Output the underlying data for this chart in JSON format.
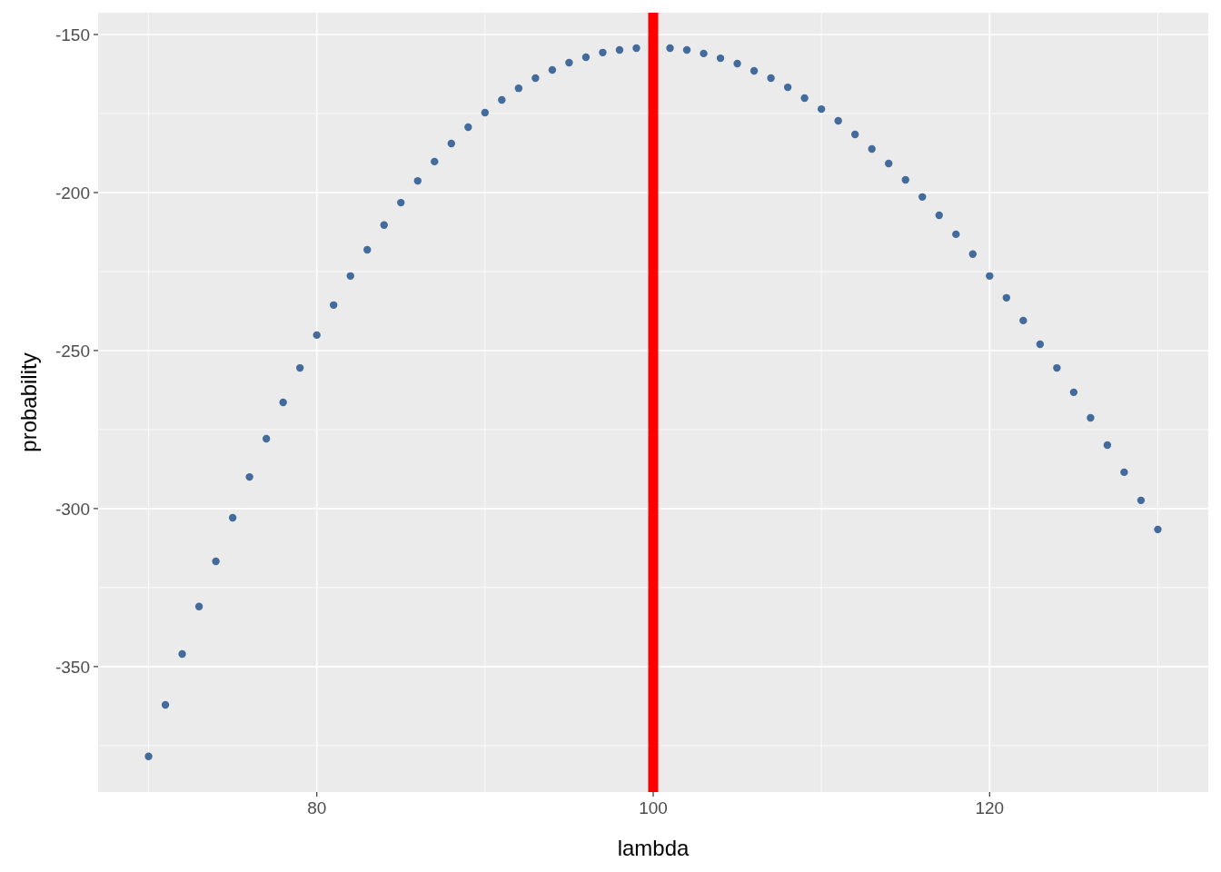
{
  "chart_data": {
    "type": "scatter",
    "xlabel": "lambda",
    "ylabel": "probability",
    "x": [
      70,
      71,
      72,
      73,
      74,
      75,
      76,
      77,
      78,
      79,
      80,
      81,
      82,
      83,
      84,
      85,
      86,
      87,
      88,
      89,
      90,
      91,
      92,
      93,
      94,
      95,
      96,
      97,
      98,
      99,
      100,
      101,
      102,
      103,
      104,
      105,
      106,
      107,
      108,
      109,
      110,
      111,
      112,
      113,
      114,
      115,
      116,
      117,
      118,
      119,
      120,
      121,
      122,
      123,
      124,
      125,
      126,
      127,
      128,
      129,
      130
    ],
    "series": [
      {
        "color": "#436b9c",
        "values": [
          -378.4,
          -362.1,
          -346.0,
          -331.0,
          -316.7,
          -302.9,
          -290.0,
          -277.9,
          -266.4,
          -255.5,
          -245.1,
          -235.6,
          -226.4,
          -218.1,
          -210.3,
          -203.2,
          -196.3,
          -190.2,
          -184.5,
          -179.3,
          -174.7,
          -170.7,
          -167.0,
          -163.8,
          -161.2,
          -158.9,
          -157.2,
          -155.7,
          -154.9,
          -154.3,
          null,
          -154.3,
          -154.9,
          -156.0,
          -157.5,
          -159.2,
          -161.5,
          -163.8,
          -166.7,
          -170.1,
          -173.6,
          -177.3,
          -181.6,
          -186.2,
          -190.8,
          -196.0,
          -201.4,
          -207.2,
          -213.2,
          -219.5,
          -226.4,
          -233.3,
          -240.5,
          -248.0,
          -255.5,
          -263.2,
          -271.3,
          -279.9,
          -288.5,
          -297.4,
          -306.6
        ]
      }
    ],
    "xlim": [
      67,
      133
    ],
    "ylim": [
      -389.7,
      -143.1
    ],
    "xticks": [
      80,
      100,
      120
    ],
    "yticks": [
      -350,
      -300,
      -250,
      -200,
      -150
    ],
    "grid": true,
    "marker": "circle",
    "ref_lines": [
      {
        "axis": "x",
        "value": 100,
        "color": "#ff0000"
      }
    ]
  }
}
